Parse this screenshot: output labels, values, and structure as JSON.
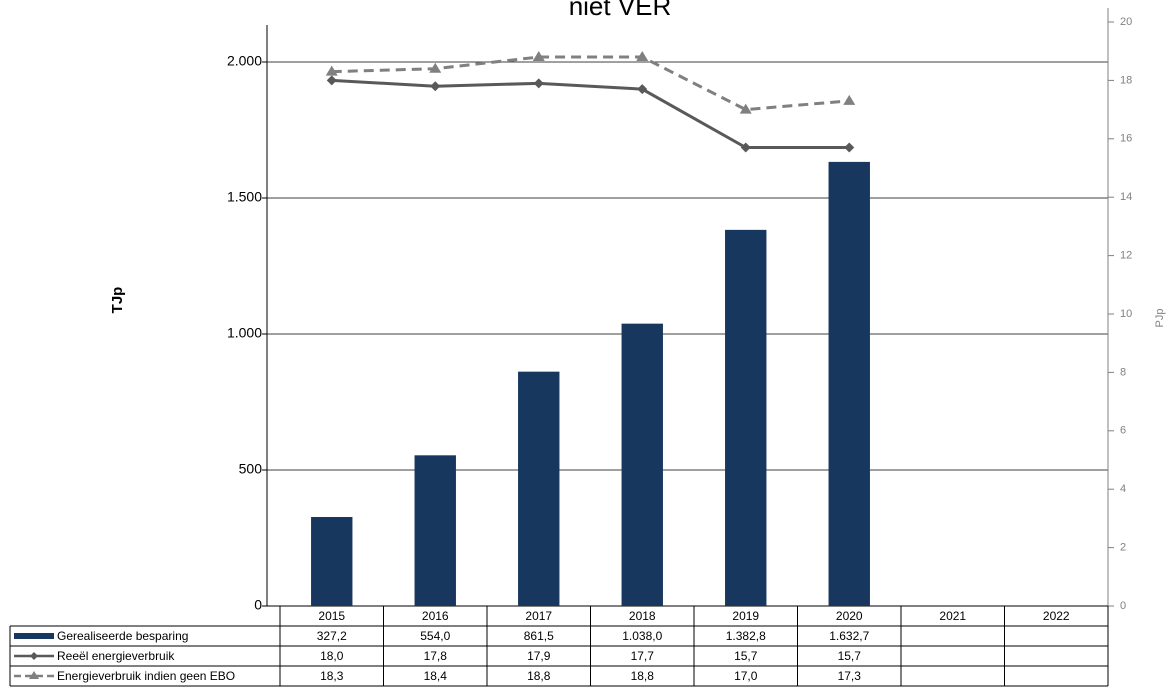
{
  "chart_data": {
    "type": "bar",
    "title": "niet VER",
    "y_label": "TJp",
    "y2_label": "PJp",
    "categories": [
      "2015",
      "2016",
      "2017",
      "2018",
      "2019",
      "2020",
      "2021",
      "2022"
    ],
    "ylim": [
      0,
      2147
    ],
    "yticks": [
      0,
      500,
      {
        "value": 1000,
        "label": "1.000"
      },
      {
        "value": 1500,
        "label": "1.500"
      },
      {
        "value": 2000,
        "label": "2.000"
      }
    ],
    "y2lim": [
      0,
      20
    ],
    "y2ticks": [
      0,
      2,
      4,
      6,
      8,
      10,
      12,
      14,
      16,
      18,
      20
    ],
    "grid": true,
    "series": [
      {
        "name": "Gerealiseerde besparing",
        "type": "bar",
        "color": "#17375e",
        "values": [
          327.2,
          554.0,
          861.5,
          1038.0,
          1382.8,
          1632.7,
          null,
          null
        ],
        "value_labels": [
          "327,2",
          "554,0",
          "861,5",
          "1.038,0",
          "1.382,8",
          "1.632,7",
          null,
          null
        ]
      },
      {
        "name": "Reeël energieverbruik",
        "type": "line",
        "axis": "y2",
        "color": "#595959",
        "marker": "diamond",
        "dashed": false,
        "values": [
          18.0,
          17.8,
          17.9,
          17.7,
          15.7,
          15.7,
          null,
          null
        ],
        "value_labels": [
          "18,0",
          "17,8",
          "17,9",
          "17,7",
          "15,7",
          "15,7",
          null,
          null
        ]
      },
      {
        "name": "Energieverbruik indien geen EBO",
        "type": "line",
        "axis": "y2",
        "color": "#808080",
        "marker": "triangle",
        "dashed": true,
        "values": [
          18.3,
          18.4,
          18.8,
          18.8,
          17.0,
          17.3,
          null,
          null
        ],
        "value_labels": [
          "18,3",
          "18,4",
          "18,8",
          "18,8",
          "17,0",
          "17,3",
          null,
          null
        ]
      }
    ]
  }
}
